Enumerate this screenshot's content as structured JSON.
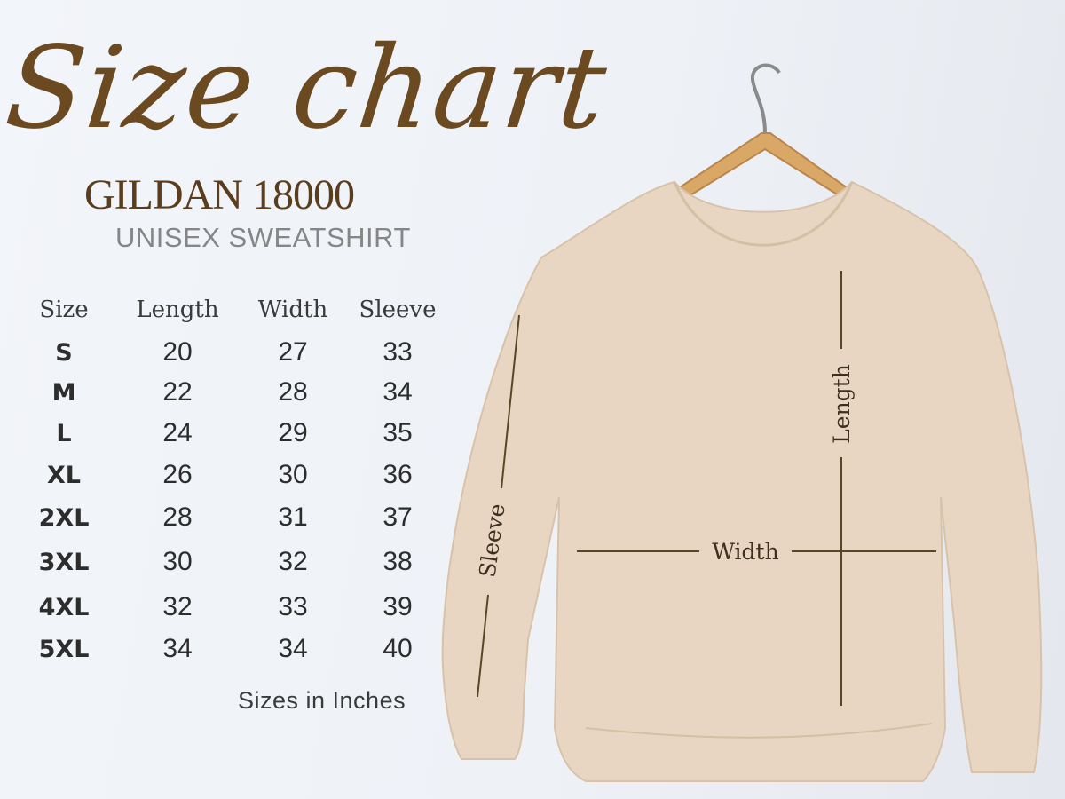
{
  "title": "Size chart",
  "brand": "GILDAN 18000",
  "subtitle": "UNISEX SWEATSHIRT",
  "table": {
    "headers": [
      "Size",
      "Length",
      "Width",
      "Sleeve"
    ],
    "rows": [
      [
        "S",
        "20",
        "27",
        "33"
      ],
      [
        "M",
        "22",
        "28",
        "34"
      ],
      [
        "L",
        "24",
        "29",
        "35"
      ],
      [
        "XL",
        "26",
        "30",
        "36"
      ],
      [
        "2XL",
        "28",
        "31",
        "37"
      ],
      [
        "3XL",
        "30",
        "32",
        "38"
      ],
      [
        "4XL",
        "32",
        "33",
        "39"
      ],
      [
        "5XL",
        "34",
        "34",
        "40"
      ]
    ]
  },
  "note": "Sizes in Inches",
  "diagram": {
    "length_label": "Length",
    "width_label": "Width",
    "sleeve_label": "Sleeve"
  },
  "colors": {
    "title": "#6b4a22",
    "garment": "#e8d6c2",
    "hanger": "#d9a866",
    "measure_line": "#5a4526"
  }
}
